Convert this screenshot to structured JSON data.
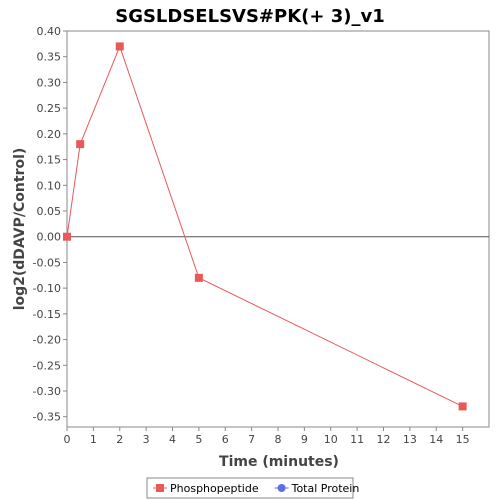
{
  "chart_data": {
    "type": "line",
    "title": "SGSLDSELSVS#PK(+ 3)_v1",
    "xlabel": "Time (minutes)",
    "ylabel": "log2(dDAVP/Control)",
    "xlim": [
      0,
      16
    ],
    "ylim": [
      -0.37,
      0.4
    ],
    "x_ticks": [
      0,
      1,
      2,
      3,
      4,
      5,
      6,
      7,
      8,
      9,
      10,
      11,
      12,
      13,
      14,
      15
    ],
    "y_ticks": [
      -0.35,
      -0.3,
      -0.25,
      -0.2,
      -0.15,
      -0.1,
      -0.05,
      0.0,
      0.05,
      0.1,
      0.15,
      0.2,
      0.25,
      0.3,
      0.35,
      0.4
    ],
    "zero_line": true,
    "grid": false,
    "legend_position": "bottom-center",
    "series": [
      {
        "name": "Phosphopeptide",
        "color": "#e8595a",
        "marker": "square",
        "x": [
          0,
          0.5,
          2,
          5,
          15
        ],
        "y": [
          0.0,
          0.18,
          0.37,
          -0.08,
          -0.33
        ]
      },
      {
        "name": "Total Protein",
        "color": "#5b6ee6",
        "marker": "circle",
        "x": [],
        "y": []
      }
    ]
  }
}
